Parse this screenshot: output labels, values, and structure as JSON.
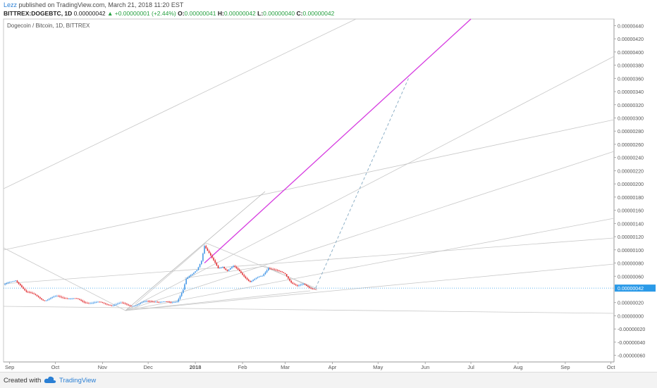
{
  "header": {
    "user": "Lezz",
    "published_text": " published on TradingView.com, March 21, 2018 11:20 EST",
    "symbol": "BITTREX:DOGEBTC, 1D",
    "last_price": "0.00000042",
    "change_arrow": "▲",
    "change": "+0.00000001 (+2.44%)",
    "o_label": "O:",
    "o_value": "0.00000041",
    "h_label": "H:",
    "h_value": "0.00000042",
    "l_label": "L:",
    "l_value": "0.00000040",
    "c_label": "C:",
    "c_value": "0.00000042"
  },
  "footer": {
    "created_with": "Created with",
    "brand": "TradingView",
    "logo_icon": "tradingview-cloud-icon"
  },
  "colors": {
    "up": "#3c93e6",
    "down": "#e0262a",
    "magenta_line": "#d63be0",
    "last_price_line": "#2b9ae8",
    "trend_lines": "#c8c8c8",
    "dashed_projection": "#8fb1c8"
  },
  "chart_data": {
    "type": "candlestick",
    "title": "Dogecoin / Bitcoin, 1D, BITTREX",
    "xlabel": "",
    "ylabel": "",
    "x_ticks": [
      "Sep",
      "Oct",
      "Nov",
      "Dec",
      "2018",
      "Feb",
      "Mar",
      "Apr",
      "May",
      "Jun",
      "Jul",
      "Aug",
      "Sep",
      "Oct"
    ],
    "x_tick_dates": [
      "2017-09-01",
      "2017-10-01",
      "2017-11-01",
      "2017-12-01",
      "2018-01-01",
      "2018-02-01",
      "2018-03-01",
      "2018-04-01",
      "2018-05-01",
      "2018-06-01",
      "2018-07-01",
      "2018-08-01",
      "2018-09-01",
      "2018-10-01"
    ],
    "y_ticks": [
      "0.00000440",
      "0.00000420",
      "0.00000400",
      "0.00000380",
      "0.00000360",
      "0.00000340",
      "0.00000320",
      "0.00000300",
      "0.00000280",
      "0.00000260",
      "0.00000240",
      "0.00000220",
      "0.00000200",
      "0.00000180",
      "0.00000160",
      "0.00000140",
      "0.00000120",
      "0.00000100",
      "0.00000080",
      "0.00000060",
      "0.00000042",
      "0.00000020",
      "0.00000000",
      "-0.00000020",
      "-0.00000040",
      "-0.00000060"
    ],
    "y_range": [
      -7e-07,
      4.5e-06
    ],
    "x_range": [
      "2017-08-28",
      "2018-10-03"
    ],
    "last_price_label": "0.00000042",
    "last_price": 4.2e-07,
    "price_series": [
      [
        "2017-08-28",
        4.7e-07
      ],
      [
        "2017-09-02",
        5e-07
      ],
      [
        "2017-09-05",
        5.4e-07
      ],
      [
        "2017-09-08",
        4.8e-07
      ],
      [
        "2017-09-12",
        3.6e-07
      ],
      [
        "2017-09-16",
        3.2e-07
      ],
      [
        "2017-09-20",
        2.9e-07
      ],
      [
        "2017-09-24",
        2.4e-07
      ],
      [
        "2017-09-28",
        2.6e-07
      ],
      [
        "2017-10-03",
        2.9e-07
      ],
      [
        "2017-10-08",
        2.8e-07
      ],
      [
        "2017-10-14",
        2.5e-07
      ],
      [
        "2017-10-20",
        2.1e-07
      ],
      [
        "2017-10-26",
        2e-07
      ],
      [
        "2017-11-01",
        1.9e-07
      ],
      [
        "2017-11-07",
        1.7e-07
      ],
      [
        "2017-11-13",
        1.8e-07
      ],
      [
        "2017-11-19",
        1.6e-07
      ],
      [
        "2017-11-25",
        1.8e-07
      ],
      [
        "2017-12-01",
        2.1e-07
      ],
      [
        "2017-12-06",
        2.3e-07
      ],
      [
        "2017-12-10",
        2.1e-07
      ],
      [
        "2017-12-16",
        1.9e-07
      ],
      [
        "2017-12-20",
        2.3e-07
      ],
      [
        "2017-12-24",
        4e-07
      ],
      [
        "2017-12-26",
        5.5e-07
      ],
      [
        "2017-12-30",
        6.2e-07
      ],
      [
        "2018-01-02",
        7e-07
      ],
      [
        "2018-01-05",
        8.5e-07
      ],
      [
        "2018-01-07",
        1.07e-06
      ],
      [
        "2018-01-09",
        9.8e-07
      ],
      [
        "2018-01-12",
        8.6e-07
      ],
      [
        "2018-01-16",
        7.2e-07
      ],
      [
        "2018-01-19",
        7.6e-07
      ],
      [
        "2018-01-22",
        6.9e-07
      ],
      [
        "2018-01-26",
        7.4e-07
      ],
      [
        "2018-01-30",
        6.7e-07
      ],
      [
        "2018-02-03",
        5.9e-07
      ],
      [
        "2018-02-06",
        5.2e-07
      ],
      [
        "2018-02-10",
        5.6e-07
      ],
      [
        "2018-02-14",
        6e-07
      ],
      [
        "2018-02-18",
        7.4e-07
      ],
      [
        "2018-02-21",
        7.1e-07
      ],
      [
        "2018-02-25",
        6.6e-07
      ],
      [
        "2018-03-01",
        6.3e-07
      ],
      [
        "2018-03-05",
        5.2e-07
      ],
      [
        "2018-03-09",
        4.5e-07
      ],
      [
        "2018-03-13",
        4.6e-07
      ],
      [
        "2018-03-17",
        4.3e-07
      ],
      [
        "2018-03-21",
        4.2e-07
      ]
    ],
    "trend_lines": [
      {
        "type": "magenta",
        "from": [
          "2018-01-07",
          8e-07
        ],
        "to": [
          "2018-07-01",
          4.5e-06
        ]
      },
      {
        "type": "dashed",
        "from": [
          "2018-03-21",
          4.2e-07
        ],
        "to": [
          "2018-05-21",
          3.6e-06
        ]
      }
    ]
  }
}
